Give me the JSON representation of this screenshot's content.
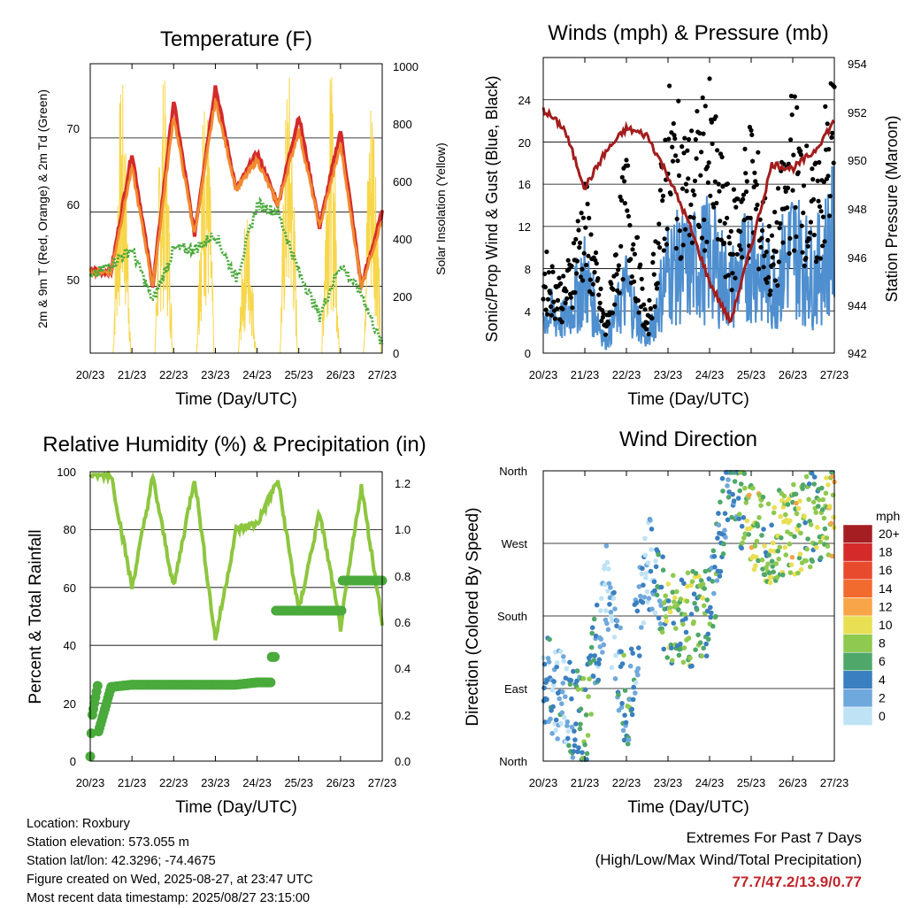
{
  "x_ticks": [
    "20/23",
    "21/23",
    "22/23",
    "23/23",
    "24/23",
    "25/23",
    "26/23",
    "27/23"
  ],
  "panels": {
    "temperature": {
      "title": "Temperature (F)",
      "ylabel": "2m & 9m T (Red, Orange) & 2m Td (Green)",
      "ylabel_right": "Solar Insolation (Yellow)",
      "xlabel": "Time (Day/UTC)",
      "yticks": [
        "50",
        "60",
        "70"
      ],
      "yticks_right": [
        "0",
        "200",
        "400",
        "600",
        "800",
        "1000"
      ]
    },
    "winds": {
      "title": "Winds (mph) & Pressure (mb)",
      "ylabel": "Sonic/Prop Wind & Gust (Blue, Black)",
      "ylabel_right": "Station Pressure (Maroon)",
      "xlabel": "Time (Day/UTC)",
      "yticks": [
        "0",
        "4",
        "8",
        "12",
        "16",
        "20",
        "24"
      ],
      "yticks_right": [
        "942",
        "944",
        "946",
        "948",
        "950",
        "952",
        "954"
      ]
    },
    "humidity": {
      "title": "Relative Humidity (%) & Precipitation (in)",
      "ylabel": "Percent & Total Rainfall",
      "xlabel": "Time (Day/UTC)",
      "yticks": [
        "0",
        "20",
        "40",
        "60",
        "80",
        "100"
      ],
      "yticks_right": [
        "0.0",
        "0.2",
        "0.4",
        "0.6",
        "0.8",
        "1.0",
        "1.2"
      ]
    },
    "direction": {
      "title": "Wind Direction",
      "ylabel": "Direction (Colored By Speed)",
      "xlabel": "Time (Day/UTC)",
      "yticks": [
        "North",
        "East",
        "South",
        "West",
        "North"
      ],
      "legend_title": "mph",
      "legend_labels": [
        "20+",
        "18",
        "16",
        "14",
        "12",
        "10",
        "8",
        "6",
        "4",
        "2",
        "0"
      ],
      "legend_colors": [
        "#a51e22",
        "#d42a2a",
        "#e84a2e",
        "#f26b2e",
        "#f8a54a",
        "#e9df54",
        "#8fc950",
        "#4fa86a",
        "#3a7fbf",
        "#6fa8dc",
        "#bfe3f5"
      ]
    }
  },
  "info": {
    "location": "Location: Roxbury",
    "elevation": "Station elevation: 573.055 m",
    "latlon": "Station lat/lon: 42.3296; -74.4675",
    "created": "Figure created on Wed, 2025-08-27, at 23:47 UTC",
    "recent": "Most recent data timestamp: 2025/08/27 23:15:00"
  },
  "extremes": {
    "line1": "Extremes For Past 7 Days",
    "line2": "(High/Low/Max Wind/Total Precipitation)",
    "values": "77.7/47.2/13.9/0.77"
  },
  "chart_data": [
    {
      "type": "line",
      "title": "Temperature (F)",
      "xlabel": "Time (Day/UTC)",
      "ylabel": "2m & 9m T (Red, Orange) & 2m Td (Green)",
      "ylabel_right": "Solar Insolation (Yellow)",
      "x": [
        0,
        0.5,
        1,
        1.5,
        2,
        2.5,
        3,
        3.5,
        4,
        4.5,
        5,
        5.5,
        6,
        6.5,
        7
      ],
      "ylim": [
        41,
        80
      ],
      "ylim_right": [
        0,
        1000
      ],
      "series": [
        {
          "name": "2m T",
          "color": "#d42a2a",
          "values": [
            52,
            52,
            68,
            50,
            75,
            57,
            77,
            63,
            68,
            61,
            73,
            58,
            71,
            50,
            60
          ]
        },
        {
          "name": "9m T",
          "color": "#f28b30",
          "values": [
            52,
            52,
            66,
            50,
            73,
            57,
            75,
            63,
            67,
            61,
            71,
            58,
            69,
            50,
            59
          ]
        },
        {
          "name": "2m Td",
          "color": "#4aaa3c",
          "values": [
            51,
            53,
            55,
            48,
            55,
            55,
            57,
            51,
            61,
            60,
            52,
            46,
            53,
            49,
            42
          ]
        },
        {
          "name": "Solar Insolation",
          "color": "#f7d64a",
          "axis": "right",
          "values": [
            0,
            0,
            950,
            0,
            970,
            0,
            940,
            0,
            500,
            0,
            990,
            0,
            980,
            0,
            980
          ]
        }
      ]
    },
    {
      "type": "scatter",
      "title": "Winds (mph) & Pressure (mb)",
      "xlabel": "Time (Day/UTC)",
      "ylabel": "Sonic/Prop Wind & Gust (Blue, Black)",
      "ylabel_right": "Station Pressure (Maroon)",
      "x": [
        0,
        0.5,
        1,
        1.5,
        2,
        2.5,
        3,
        3.5,
        4,
        4.5,
        5,
        5.5,
        6,
        6.5,
        7
      ],
      "ylim": [
        0,
        28
      ],
      "ylim_right": [
        942,
        954.5
      ],
      "series": [
        {
          "name": "Gust",
          "color": "#000000",
          "values": [
            7,
            5,
            12,
            2,
            14,
            2,
            18,
            15,
            18,
            10,
            16,
            8,
            18,
            12,
            20
          ]
        },
        {
          "name": "Wind",
          "color": "#4f8fcf",
          "values": [
            4,
            3,
            7,
            1,
            6,
            1,
            8,
            8,
            9,
            6,
            9,
            6,
            10,
            7,
            11
          ]
        },
        {
          "name": "Pressure",
          "color": "#a31d1d",
          "axis": "right",
          "values": [
            952.3,
            951.5,
            949,
            950.5,
            951.5,
            951.2,
            949.5,
            947.5,
            945,
            943.3,
            946.5,
            950,
            949.8,
            950.5,
            951.8
          ]
        }
      ]
    },
    {
      "type": "line",
      "title": "Relative Humidity (%) & Precipitation (in)",
      "xlabel": "Time (Day/UTC)",
      "ylabel": "Percent & Total Rainfall",
      "x": [
        0,
        0.5,
        1,
        1.5,
        2,
        2.5,
        3,
        3.5,
        4,
        4.5,
        5,
        5.5,
        6,
        6.5,
        7
      ],
      "ylim": [
        0,
        100
      ],
      "ylim_right": [
        0,
        1.25
      ],
      "series": [
        {
          "name": "RH",
          "color": "#8dc63f",
          "values": [
            99,
            99,
            60,
            98,
            60,
            98,
            42,
            80,
            82,
            97,
            52,
            86,
            46,
            95,
            48
          ]
        },
        {
          "name": "Precipitation",
          "color": "#4aaa3c",
          "axis": "right",
          "values": [
            0.0,
            0.32,
            0.33,
            0.33,
            0.33,
            0.33,
            0.33,
            0.33,
            0.34,
            0.34,
            0.65,
            0.65,
            0.78,
            0.78,
            0.78
          ]
        }
      ]
    },
    {
      "type": "scatter",
      "title": "Wind Direction",
      "xlabel": "Time (Day/UTC)",
      "ylabel": "Direction (Colored By Speed)",
      "x": [
        0,
        0.5,
        1,
        1.5,
        2,
        2.5,
        3,
        3.5,
        4,
        4.5,
        5,
        5.5,
        6,
        6.5,
        7
      ],
      "ylim": [
        0,
        360
      ],
      "values_deg": [
        100,
        80,
        40,
        220,
        60,
        250,
        180,
        175,
        180,
        360,
        290,
        280,
        290,
        300,
        310
      ],
      "speed_mph": [
        4,
        3,
        8,
        1,
        6,
        1,
        8,
        8,
        7,
        4,
        10,
        8,
        10,
        7,
        11
      ]
    }
  ]
}
